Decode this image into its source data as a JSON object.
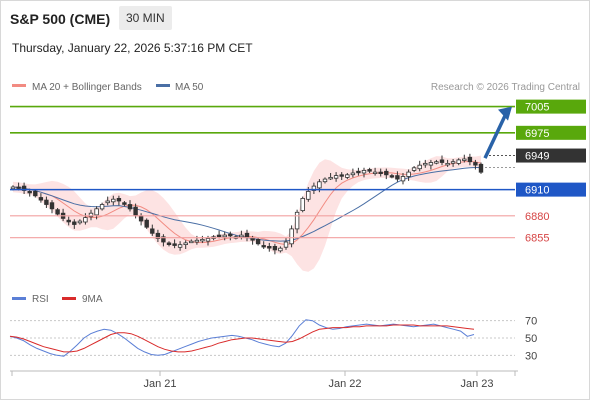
{
  "header": {
    "instrument": "S&P 500 (CME)",
    "timeframe": "30 MIN",
    "timestamp": "Thursday, January 22, 2026 5:37:16 PM CET"
  },
  "colors": {
    "resistance_green": "#59a80c",
    "pivot_blue": "#1f57c6",
    "support_red": "#d64545",
    "support_line_pink": "#f2a1a1",
    "current_price_dark": "#333333",
    "forecast_arrow": "#2962a8",
    "bollinger_fill": "#fde3e3",
    "ma20_line": "#f28b82",
    "ma50_line": "#4a6fa5",
    "rsi_line": "#5b7fd6",
    "rsi_ma_line": "#d92b2b"
  },
  "chart_data": [
    {
      "type": "candlestick",
      "legend": [
        {
          "name": "MA 20 + Bollinger Bands",
          "color": "#f28b82"
        },
        {
          "name": "MA 50",
          "color": "#4a6fa5"
        }
      ],
      "watermark": "Research © 2026 Trading Central",
      "x_tick_labels": [
        "Jan 21",
        "Jan 22",
        "Jan 23"
      ],
      "ylim": [
        6818,
        7016
      ],
      "close": [
        6913,
        6912,
        6909,
        6907,
        6903,
        6898,
        6893,
        6888,
        6882,
        6877,
        6873,
        6870,
        6874,
        6878,
        6883,
        6888,
        6893,
        6897,
        6899,
        6897,
        6893,
        6888,
        6881,
        6874,
        6867,
        6860,
        6854,
        6850,
        6847,
        6846,
        6847,
        6849,
        6851,
        6852,
        6853,
        6854,
        6856,
        6857,
        6858,
        6857,
        6856,
        6858,
        6855,
        6852,
        6848,
        6845,
        6843,
        6841,
        6843,
        6850,
        6865,
        6884,
        6900,
        6908,
        6914,
        6919,
        6922,
        6924,
        6926,
        6926,
        6927,
        6929,
        6930,
        6932,
        6931,
        6930,
        6929,
        6927,
        6925,
        6922,
        6925,
        6930,
        6935,
        6938,
        6940,
        6941,
        6942,
        6941,
        6940,
        6942,
        6944,
        6945,
        6942,
        6938,
        6930
      ],
      "levels": [
        {
          "value": 7005,
          "label": "7005",
          "kind": "resistance"
        },
        {
          "value": 6975,
          "label": "6975",
          "kind": "resistance"
        },
        {
          "value": 6949,
          "label": "6949",
          "kind": "current"
        },
        {
          "value": 6910,
          "label": "6910",
          "kind": "pivot"
        },
        {
          "value": 6880,
          "label": "6880",
          "kind": "support"
        },
        {
          "value": 6855,
          "label": "6855",
          "kind": "support"
        }
      ],
      "forecast_target": 7005
    },
    {
      "type": "line",
      "legend": [
        {
          "name": "RSI",
          "color": "#5b7fd6"
        },
        {
          "name": "9MA",
          "color": "#d92b2b"
        }
      ],
      "y_tick_labels": [
        "70",
        "50",
        "30"
      ],
      "y_ticks": [
        70,
        50,
        30
      ],
      "ylim": [
        20,
        80
      ],
      "series": [
        {
          "name": "RSI",
          "values": [
            52,
            50,
            47,
            42,
            38,
            35,
            32,
            30,
            29,
            35,
            42,
            50,
            55,
            58,
            60,
            59,
            55,
            50,
            44,
            38,
            34,
            31,
            30,
            31,
            34,
            37,
            40,
            43,
            46,
            48,
            50,
            51,
            52,
            53,
            52,
            50,
            48,
            45,
            43,
            41,
            40,
            44,
            53,
            64,
            71,
            70,
            65,
            62,
            60,
            61,
            63,
            64,
            65,
            66,
            65,
            64,
            65,
            66,
            65,
            64,
            63,
            64,
            65,
            66,
            64,
            62,
            60,
            58,
            52,
            54
          ]
        },
        {
          "name": "9MA",
          "values": [
            52,
            51,
            49,
            46,
            43,
            40,
            38,
            36,
            34,
            34,
            35,
            38,
            42,
            46,
            50,
            54,
            56,
            56,
            55,
            52,
            48,
            44,
            40,
            37,
            35,
            34,
            34,
            35,
            37,
            39,
            41,
            44,
            46,
            48,
            49,
            50,
            50,
            49,
            48,
            47,
            46,
            45,
            46,
            49,
            53,
            57,
            60,
            61,
            62,
            62,
            62,
            63,
            63,
            64,
            64,
            64,
            64,
            65,
            65,
            65,
            65,
            64,
            64,
            64,
            64,
            64,
            63,
            62,
            61,
            60
          ]
        }
      ]
    }
  ]
}
